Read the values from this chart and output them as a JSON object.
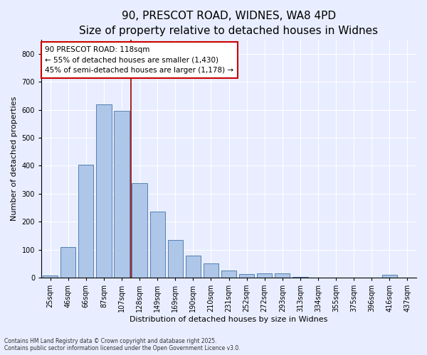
{
  "title_line1": "90, PRESCOT ROAD, WIDNES, WA8 4PD",
  "title_line2": "Size of property relative to detached houses in Widnes",
  "xlabel": "Distribution of detached houses by size in Widnes",
  "ylabel": "Number of detached properties",
  "categories": [
    "25sqm",
    "46sqm",
    "66sqm",
    "87sqm",
    "107sqm",
    "128sqm",
    "149sqm",
    "169sqm",
    "190sqm",
    "210sqm",
    "231sqm",
    "252sqm",
    "272sqm",
    "293sqm",
    "313sqm",
    "334sqm",
    "355sqm",
    "375sqm",
    "396sqm",
    "416sqm",
    "437sqm"
  ],
  "values": [
    8,
    108,
    403,
    620,
    597,
    337,
    237,
    135,
    78,
    50,
    25,
    12,
    15,
    15,
    3,
    0,
    0,
    0,
    0,
    10,
    0
  ],
  "bar_color": "#aec6e8",
  "bar_edge_color": "#5580b0",
  "vline_color": "#990000",
  "annotation_title": "90 PRESCOT ROAD: 118sqm",
  "annotation_line2": "← 55% of detached houses are smaller (1,430)",
  "annotation_line3": "45% of semi-detached houses are larger (1,178) →",
  "annotation_box_color": "#ffffff",
  "annotation_box_edge": "#cc0000",
  "ylim": [
    0,
    850
  ],
  "yticks": [
    0,
    100,
    200,
    300,
    400,
    500,
    600,
    700,
    800
  ],
  "background_color": "#e8eeff",
  "plot_background": "#e8eeff",
  "footer_line1": "Contains HM Land Registry data © Crown copyright and database right 2025.",
  "footer_line2": "Contains public sector information licensed under the Open Government Licence v3.0.",
  "title_fontsize": 11,
  "subtitle_fontsize": 9.5,
  "axis_label_fontsize": 8,
  "tick_fontsize": 7,
  "annotation_fontsize": 7.5
}
